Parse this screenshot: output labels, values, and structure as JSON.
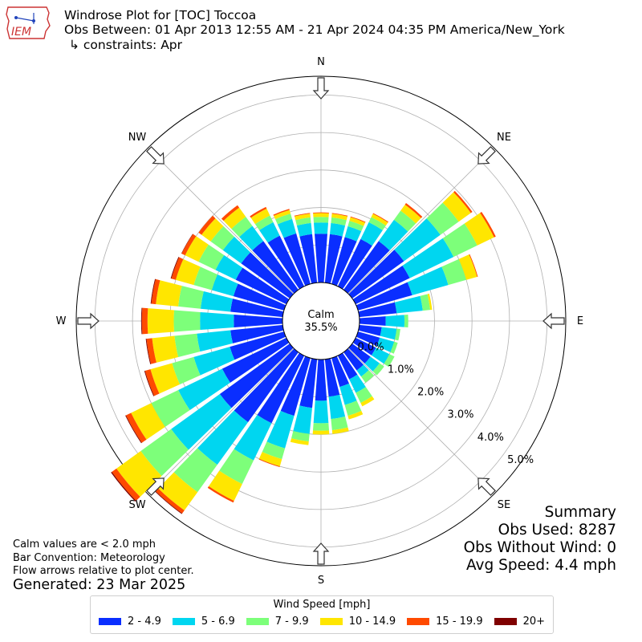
{
  "header": {
    "logo_text": "IEM",
    "title": "Windrose Plot for [TOC] Toccoa",
    "obs_between": "Obs Between: 01 Apr 2013 12:55 AM - 21 Apr 2024 04:35 PM America/New_York",
    "constraints": "↳ constraints: Apr"
  },
  "notes": {
    "line1": "Calm values are < 2.0 mph",
    "line2": "Bar Convention: Meteorology",
    "line3": "Flow arrows relative to plot center.",
    "generated": "Generated: 23 Mar 2025"
  },
  "summary": {
    "title": "Summary",
    "obs_used": "Obs Used: 8287",
    "obs_without_wind": "Obs Without Wind: 0",
    "avg_speed": "Avg Speed: 4.4 mph"
  },
  "legend": {
    "title": "Wind Speed [mph]",
    "bins": [
      {
        "label": "2 - 4.9",
        "color": "#0a2eff"
      },
      {
        "label": "5 - 6.9",
        "color": "#00d6f0"
      },
      {
        "label": "7 - 9.9",
        "color": "#7dff7a"
      },
      {
        "label": "10 - 14.9",
        "color": "#ffe600"
      },
      {
        "label": "15 - 19.9",
        "color": "#ff4a00"
      },
      {
        "label": "20+",
        "color": "#7f0000"
      }
    ]
  },
  "chart_data": {
    "type": "windrose",
    "calm_label": "Calm",
    "calm_value": "35.5%",
    "radial_unit": "%",
    "radial_ticks": [
      "0.0%",
      "1.0%",
      "2.0%",
      "3.0%",
      "4.0%",
      "5.0%"
    ],
    "radial_max": 5.5,
    "compass_labels": [
      "N",
      "NE",
      "E",
      "SE",
      "S",
      "SW",
      "W",
      "NW"
    ],
    "speed_bins": [
      "2 - 4.9",
      "5 - 6.9",
      "7 - 9.9",
      "10 - 14.9",
      "15 - 19.9",
      "20+"
    ],
    "directions_deg": [
      0,
      10,
      20,
      30,
      40,
      50,
      60,
      70,
      80,
      90,
      100,
      110,
      120,
      130,
      140,
      150,
      160,
      170,
      180,
      190,
      200,
      210,
      220,
      230,
      240,
      250,
      260,
      270,
      280,
      290,
      300,
      310,
      320,
      330,
      340,
      350
    ],
    "series": [
      {
        "name": "2 - 4.9",
        "values": [
          1.3,
          1.3,
          1.3,
          1.4,
          1.6,
          1.7,
          1.6,
          1.5,
          1.0,
          0.7,
          0.6,
          0.6,
          0.6,
          0.6,
          0.6,
          0.7,
          0.8,
          1.0,
          1.1,
          1.3,
          1.6,
          2.0,
          2.3,
          2.3,
          1.9,
          1.5,
          1.4,
          1.3,
          1.4,
          1.4,
          1.5,
          1.6,
          1.6,
          1.5,
          1.4,
          1.3
        ]
      },
      {
        "name": "5 - 6.9",
        "values": [
          0.3,
          0.3,
          0.3,
          0.5,
          0.7,
          1.2,
          1.3,
          1.0,
          0.7,
          0.5,
          0.4,
          0.4,
          0.4,
          0.3,
          0.2,
          0.4,
          0.5,
          0.6,
          0.6,
          0.7,
          0.9,
          1.1,
          1.4,
          1.6,
          1.3,
          1.0,
          0.9,
          0.9,
          0.8,
          0.6,
          0.6,
          0.6,
          0.5,
          0.4,
          0.4,
          0.3
        ]
      },
      {
        "name": "7 - 9.9",
        "values": [
          0.15,
          0.15,
          0.15,
          0.15,
          0.3,
          0.6,
          0.7,
          0.5,
          0.2,
          0.1,
          0.1,
          0.1,
          0.15,
          0.15,
          0.2,
          0.3,
          0.3,
          0.3,
          0.2,
          0.2,
          0.3,
          0.7,
          0.9,
          1.0,
          0.8,
          0.6,
          0.6,
          0.7,
          0.6,
          0.5,
          0.5,
          0.4,
          0.3,
          0.2,
          0.15,
          0.15
        ]
      },
      {
        "name": "10 - 14.9",
        "values": [
          0.1,
          0.1,
          0.1,
          0.1,
          0.2,
          0.4,
          0.5,
          0.3,
          0.05,
          0.0,
          0.0,
          0.0,
          0.0,
          0.0,
          0.0,
          0.1,
          0.1,
          0.1,
          0.1,
          0.1,
          0.2,
          0.5,
          0.6,
          0.8,
          0.6,
          0.6,
          0.6,
          0.7,
          0.6,
          0.5,
          0.4,
          0.3,
          0.3,
          0.2,
          0.1,
          0.1
        ]
      },
      {
        "name": "15 - 19.9",
        "values": [
          0.02,
          0.02,
          0.02,
          0.02,
          0.05,
          0.05,
          0.05,
          0.02,
          0.0,
          0.0,
          0.0,
          0.0,
          0.0,
          0.0,
          0.0,
          0.0,
          0.0,
          0.0,
          0.0,
          0.0,
          0.02,
          0.05,
          0.1,
          0.15,
          0.15,
          0.15,
          0.15,
          0.15,
          0.12,
          0.12,
          0.1,
          0.1,
          0.08,
          0.05,
          0.03,
          0.02
        ]
      },
      {
        "name": "20+",
        "values": [
          0,
          0,
          0,
          0,
          0,
          0,
          0,
          0,
          0,
          0,
          0,
          0,
          0,
          0,
          0,
          0,
          0,
          0,
          0,
          0,
          0,
          0,
          0.02,
          0.03,
          0.02,
          0.02,
          0.02,
          0.02,
          0.02,
          0.02,
          0.01,
          0,
          0,
          0,
          0,
          0
        ]
      }
    ]
  }
}
